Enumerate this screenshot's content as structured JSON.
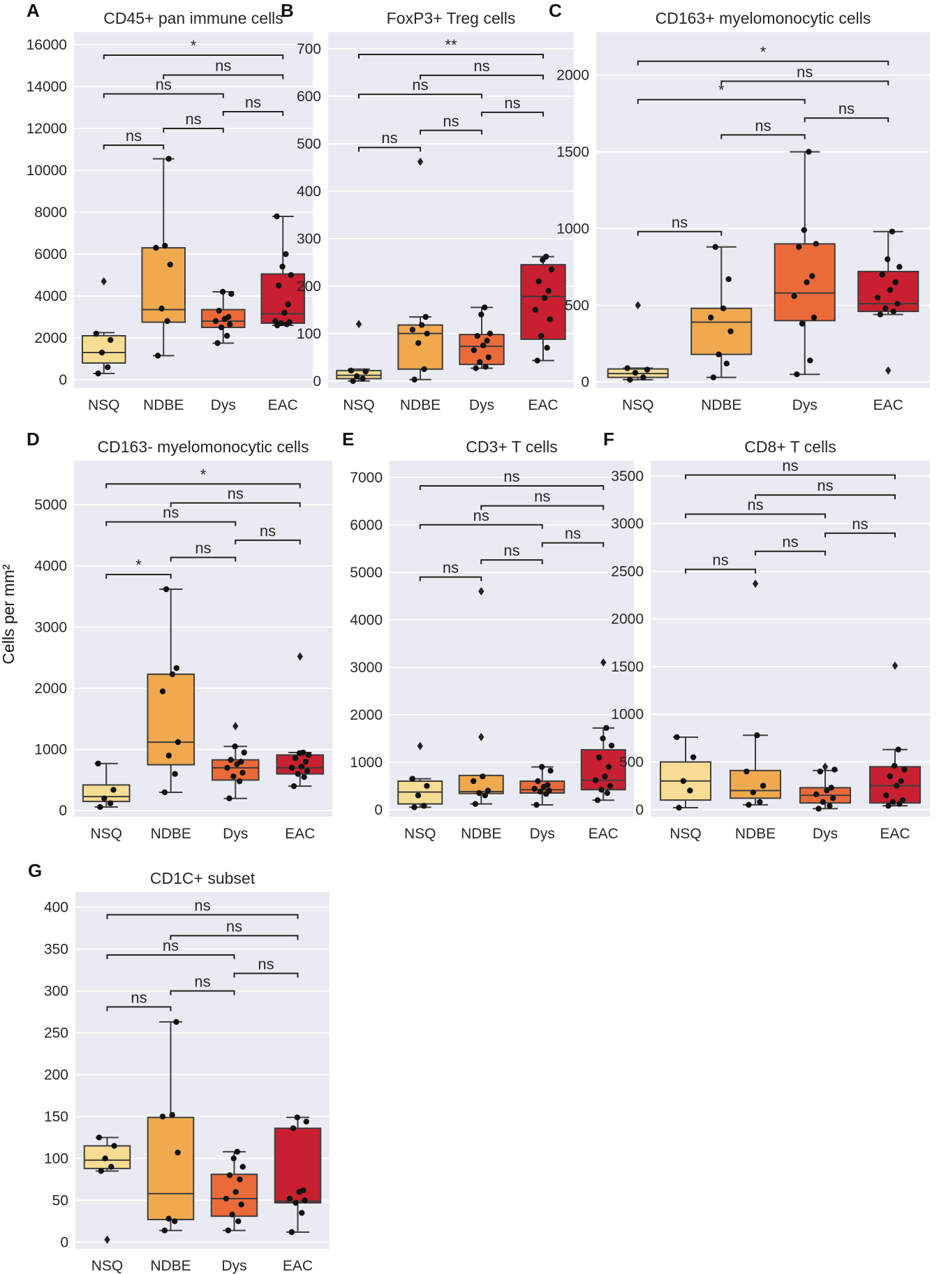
{
  "figure": {
    "shared_ylabel": "Cells per mm²"
  },
  "chart_data": [
    {
      "panel": "A",
      "type": "box",
      "title": "CD45+ pan immune cells",
      "categories": [
        "NSQ",
        "NDBE",
        "Dys",
        "EAC"
      ],
      "colors": [
        "#f7dc93",
        "#f0a94e",
        "#eb6a3a",
        "#c82030"
      ],
      "ylim": [
        -400,
        16600
      ],
      "yticks": [
        0,
        2000,
        4000,
        6000,
        8000,
        10000,
        12000,
        14000,
        16000
      ],
      "ytick_labels": [
        "0",
        "2000",
        "4000",
        "6000",
        "8000",
        "10000",
        "12000",
        "14000",
        "16000"
      ],
      "boxes": [
        {
          "q1": 800,
          "median": 1300,
          "q3": 2100,
          "whislo": 300,
          "whishi": 2250,
          "fliers": [
            4700
          ],
          "points": [
            300,
            600,
            1300,
            1900,
            2200
          ]
        },
        {
          "q1": 2750,
          "median": 3350,
          "q3": 6300,
          "whislo": 1150,
          "whishi": 10550,
          "fliers": [],
          "points": [
            1150,
            2800,
            3400,
            5500,
            6300,
            6400,
            10550
          ]
        },
        {
          "q1": 2500,
          "median": 2800,
          "q3": 3350,
          "whislo": 1750,
          "whishi": 4200,
          "fliers": [],
          "points": [
            1750,
            2100,
            2500,
            2650,
            2800,
            2900,
            3000,
            3300,
            4100,
            4200
          ]
        },
        {
          "q1": 2700,
          "median": 3150,
          "q3": 5050,
          "whislo": 2600,
          "whishi": 7800,
          "fliers": [],
          "points": [
            2600,
            2650,
            2700,
            2750,
            2800,
            3200,
            3600,
            4500,
            5000,
            5400,
            6000,
            7800
          ]
        }
      ],
      "brackets": [
        {
          "from": "NSQ",
          "to": "NDBE",
          "y": 11200,
          "label": "ns"
        },
        {
          "from": "NDBE",
          "to": "Dys",
          "y": 12000,
          "label": "ns"
        },
        {
          "from": "Dys",
          "to": "EAC",
          "y": 12800,
          "label": "ns"
        },
        {
          "from": "NSQ",
          "to": "Dys",
          "y": 13650,
          "label": "ns"
        },
        {
          "from": "NDBE",
          "to": "EAC",
          "y": 14550,
          "label": "ns"
        },
        {
          "from": "NSQ",
          "to": "EAC",
          "y": 15500,
          "label": "*"
        }
      ]
    },
    {
      "panel": "B",
      "type": "box",
      "title": "FoxP3+ Treg cells",
      "categories": [
        "NSQ",
        "NDBE",
        "Dys",
        "EAC"
      ],
      "colors": [
        "#f7dc93",
        "#f0a94e",
        "#eb6a3a",
        "#c82030"
      ],
      "ylim": [
        -15,
        735
      ],
      "yticks": [
        0,
        100,
        200,
        300,
        400,
        500,
        600,
        700
      ],
      "ytick_labels": [
        "0",
        "100",
        "200",
        "300",
        "400",
        "500",
        "600",
        "700"
      ],
      "boxes": [
        {
          "q1": 5,
          "median": 12,
          "q3": 22,
          "whislo": 0,
          "whishi": 25,
          "fliers": [
            120
          ],
          "points": [
            0,
            5,
            10,
            20,
            22
          ]
        },
        {
          "q1": 25,
          "median": 100,
          "q3": 118,
          "whislo": 3,
          "whishi": 135,
          "fliers": [
            462
          ],
          "points": [
            3,
            25,
            80,
            100,
            108,
            118,
            135
          ]
        },
        {
          "q1": 35,
          "median": 73,
          "q3": 98,
          "whislo": 27,
          "whishi": 155,
          "fliers": [],
          "points": [
            27,
            30,
            40,
            50,
            65,
            75,
            85,
            95,
            100,
            140,
            155
          ]
        },
        {
          "q1": 88,
          "median": 178,
          "q3": 245,
          "whislo": 43,
          "whishi": 262,
          "fliers": [],
          "points": [
            43,
            70,
            95,
            130,
            150,
            175,
            190,
            210,
            235,
            255,
            262
          ]
        }
      ],
      "brackets": [
        {
          "from": "NSQ",
          "to": "NDBE",
          "y": 492,
          "label": "ns"
        },
        {
          "from": "NDBE",
          "to": "Dys",
          "y": 528,
          "label": "ns"
        },
        {
          "from": "Dys",
          "to": "EAC",
          "y": 566,
          "label": "ns"
        },
        {
          "from": "NSQ",
          "to": "Dys",
          "y": 604,
          "label": "ns"
        },
        {
          "from": "NDBE",
          "to": "EAC",
          "y": 644,
          "label": "ns"
        },
        {
          "from": "NSQ",
          "to": "EAC",
          "y": 688,
          "label": "**"
        }
      ]
    },
    {
      "panel": "C",
      "type": "box",
      "title": "CD163+ myelomonocytic cells",
      "categories": [
        "NSQ",
        "NDBE",
        "Dys",
        "EAC"
      ],
      "colors": [
        "#f7dc93",
        "#f0a94e",
        "#eb6a3a",
        "#c82030"
      ],
      "ylim": [
        -40,
        2280
      ],
      "yticks": [
        0,
        500,
        1000,
        1500,
        2000
      ],
      "ytick_labels": [
        "0",
        "500",
        "1000",
        "1500",
        "2000"
      ],
      "boxes": [
        {
          "q1": 30,
          "median": 55,
          "q3": 85,
          "whislo": 15,
          "whishi": 90,
          "fliers": [
            500
          ],
          "points": [
            15,
            30,
            60,
            80,
            90
          ]
        },
        {
          "q1": 180,
          "median": 390,
          "q3": 480,
          "whislo": 30,
          "whishi": 880,
          "fliers": [],
          "points": [
            30,
            120,
            180,
            330,
            420,
            480,
            670,
            880
          ]
        },
        {
          "q1": 400,
          "median": 580,
          "q3": 900,
          "whislo": 50,
          "whishi": 1500,
          "fliers": [],
          "points": [
            50,
            140,
            380,
            420,
            560,
            650,
            690,
            880,
            900,
            990,
            1500
          ]
        },
        {
          "q1": 460,
          "median": 510,
          "q3": 720,
          "whislo": 440,
          "whishi": 980,
          "fliers": [
            75
          ],
          "points": [
            440,
            460,
            480,
            510,
            550,
            600,
            650,
            700,
            750,
            800,
            980
          ]
        }
      ],
      "brackets": [
        {
          "from": "NSQ",
          "to": "NDBE",
          "y": 980,
          "label": "ns"
        },
        {
          "from": "NDBE",
          "to": "Dys",
          "y": 1610,
          "label": "ns"
        },
        {
          "from": "Dys",
          "to": "EAC",
          "y": 1720,
          "label": "ns"
        },
        {
          "from": "NSQ",
          "to": "Dys",
          "y": 1840,
          "label": "*"
        },
        {
          "from": "NDBE",
          "to": "EAC",
          "y": 1960,
          "label": "ns"
        },
        {
          "from": "NSQ",
          "to": "EAC",
          "y": 2090,
          "label": "*"
        }
      ]
    },
    {
      "panel": "D",
      "type": "box",
      "title": "CD163- myelomonocytic cells",
      "categories": [
        "NSQ",
        "NDBE",
        "Dys",
        "EAC"
      ],
      "colors": [
        "#f7dc93",
        "#f0a94e",
        "#eb6a3a",
        "#c82030"
      ],
      "ylim": [
        -100,
        5720
      ],
      "yticks": [
        0,
        1000,
        2000,
        3000,
        4000,
        5000
      ],
      "ytick_labels": [
        "0",
        "1000",
        "2000",
        "3000",
        "4000",
        "5000"
      ],
      "boxes": [
        {
          "q1": 150,
          "median": 230,
          "q3": 420,
          "whislo": 60,
          "whishi": 770,
          "fliers": [],
          "points": [
            60,
            120,
            200,
            340,
            770
          ]
        },
        {
          "q1": 750,
          "median": 1120,
          "q3": 2230,
          "whislo": 300,
          "whishi": 3620,
          "fliers": [],
          "points": [
            300,
            600,
            900,
            1120,
            1950,
            2230,
            2330,
            3620
          ]
        },
        {
          "q1": 500,
          "median": 700,
          "q3": 830,
          "whislo": 200,
          "whishi": 1050,
          "fliers": [
            1380
          ],
          "points": [
            200,
            480,
            560,
            620,
            700,
            760,
            800,
            830,
            950,
            1050
          ]
        },
        {
          "q1": 600,
          "median": 700,
          "q3": 910,
          "whislo": 400,
          "whishi": 950,
          "fliers": [
            2520
          ],
          "points": [
            400,
            550,
            600,
            650,
            700,
            720,
            800,
            860,
            910,
            940,
            950
          ]
        }
      ],
      "brackets": [
        {
          "from": "NSQ",
          "to": "NDBE",
          "y": 3860,
          "label": "*"
        },
        {
          "from": "NDBE",
          "to": "Dys",
          "y": 4140,
          "label": "ns"
        },
        {
          "from": "Dys",
          "to": "EAC",
          "y": 4420,
          "label": "ns"
        },
        {
          "from": "NSQ",
          "to": "Dys",
          "y": 4720,
          "label": "ns"
        },
        {
          "from": "NDBE",
          "to": "EAC",
          "y": 5030,
          "label": "ns"
        },
        {
          "from": "NSQ",
          "to": "EAC",
          "y": 5340,
          "label": "*"
        }
      ]
    },
    {
      "panel": "E",
      "type": "box",
      "title": "CD3+ T cells",
      "categories": [
        "NSQ",
        "NDBE",
        "Dys",
        "EAC"
      ],
      "colors": [
        "#f7dc93",
        "#f0a94e",
        "#eb6a3a",
        "#c82030"
      ],
      "ylim": [
        -150,
        7350
      ],
      "yticks": [
        0,
        1000,
        2000,
        3000,
        4000,
        5000,
        6000,
        7000
      ],
      "ytick_labels": [
        "0",
        "1000",
        "2000",
        "3000",
        "4000",
        "5000",
        "6000",
        "7000"
      ],
      "boxes": [
        {
          "q1": 120,
          "median": 370,
          "q3": 600,
          "whislo": 50,
          "whishi": 650,
          "fliers": [
            1340
          ],
          "points": [
            50,
            80,
            300,
            500,
            650
          ]
        },
        {
          "q1": 340,
          "median": 380,
          "q3": 720,
          "whislo": 120,
          "whishi": 720,
          "fliers": [
            1530,
            4600
          ],
          "points": [
            120,
            300,
            350,
            400,
            600,
            700
          ]
        },
        {
          "q1": 350,
          "median": 420,
          "q3": 600,
          "whislo": 100,
          "whishi": 900,
          "fliers": [],
          "points": [
            100,
            330,
            380,
            400,
            440,
            480,
            520,
            600,
            820,
            900
          ]
        },
        {
          "q1": 420,
          "median": 620,
          "q3": 1260,
          "whislo": 200,
          "whishi": 1720,
          "fliers": [
            3100
          ],
          "points": [
            200,
            350,
            420,
            500,
            620,
            700,
            900,
            1100,
            1350,
            1500,
            1720
          ]
        }
      ],
      "brackets": [
        {
          "from": "NSQ",
          "to": "NDBE",
          "y": 4900,
          "label": "ns"
        },
        {
          "from": "NDBE",
          "to": "Dys",
          "y": 5260,
          "label": "ns"
        },
        {
          "from": "Dys",
          "to": "EAC",
          "y": 5620,
          "label": "ns"
        },
        {
          "from": "NSQ",
          "to": "Dys",
          "y": 6000,
          "label": "ns"
        },
        {
          "from": "NDBE",
          "to": "EAC",
          "y": 6400,
          "label": "ns"
        },
        {
          "from": "NSQ",
          "to": "EAC",
          "y": 6820,
          "label": "ns"
        }
      ]
    },
    {
      "panel": "F",
      "type": "box",
      "title": "CD8+ T cells",
      "categories": [
        "NSQ",
        "NDBE",
        "Dys",
        "EAC"
      ],
      "colors": [
        "#f7dc93",
        "#f0a94e",
        "#eb6a3a",
        "#c82030"
      ],
      "ylim": [
        -75,
        3660
      ],
      "yticks": [
        0,
        500,
        1000,
        1500,
        2000,
        2500,
        3000,
        3500
      ],
      "ytick_labels": [
        "0",
        "500",
        "1000",
        "1500",
        "2000",
        "2500",
        "3000",
        "3500"
      ],
      "boxes": [
        {
          "q1": 100,
          "median": 300,
          "q3": 500,
          "whislo": 20,
          "whishi": 760,
          "fliers": [],
          "points": [
            20,
            200,
            300,
            550,
            760
          ]
        },
        {
          "q1": 120,
          "median": 200,
          "q3": 410,
          "whislo": 50,
          "whishi": 780,
          "fliers": [
            2370
          ],
          "points": [
            50,
            80,
            180,
            250,
            400,
            780
          ]
        },
        {
          "q1": 70,
          "median": 150,
          "q3": 230,
          "whislo": 10,
          "whishi": 410,
          "fliers": [
            450
          ],
          "points": [
            10,
            40,
            80,
            120,
            160,
            200,
            230,
            400,
            420
          ]
        },
        {
          "q1": 70,
          "median": 250,
          "q3": 450,
          "whislo": 40,
          "whishi": 630,
          "fliers": [
            1510
          ],
          "points": [
            40,
            60,
            80,
            100,
            150,
            250,
            300,
            350,
            420,
            460,
            630
          ]
        }
      ],
      "brackets": [
        {
          "from": "NSQ",
          "to": "NDBE",
          "y": 2520,
          "label": "ns"
        },
        {
          "from": "NDBE",
          "to": "Dys",
          "y": 2710,
          "label": "ns"
        },
        {
          "from": "Dys",
          "to": "EAC",
          "y": 2900,
          "label": "ns"
        },
        {
          "from": "NSQ",
          "to": "Dys",
          "y": 3100,
          "label": "ns"
        },
        {
          "from": "NDBE",
          "to": "EAC",
          "y": 3300,
          "label": "ns"
        },
        {
          "from": "NSQ",
          "to": "EAC",
          "y": 3510,
          "label": "ns"
        }
      ]
    },
    {
      "panel": "G",
      "type": "box",
      "title": "CD1C+ subset",
      "categories": [
        "NSQ",
        "NDBE",
        "Dys",
        "EAC"
      ],
      "colors": [
        "#f7dc93",
        "#f0a94e",
        "#eb6a3a",
        "#c82030"
      ],
      "ylim": [
        -8,
        418
      ],
      "yticks": [
        0,
        50,
        100,
        150,
        200,
        250,
        300,
        350,
        400
      ],
      "ytick_labels": [
        "0",
        "50",
        "100",
        "150",
        "200",
        "250",
        "300",
        "350",
        "400"
      ],
      "boxes": [
        {
          "q1": 88,
          "median": 98,
          "q3": 115,
          "whislo": 85,
          "whishi": 125,
          "fliers": [
            3
          ],
          "points": [
            85,
            90,
            100,
            115,
            125
          ]
        },
        {
          "q1": 27,
          "median": 58,
          "q3": 149,
          "whislo": 14,
          "whishi": 263,
          "fliers": [],
          "points": [
            14,
            25,
            28,
            107,
            150,
            152,
            263
          ]
        },
        {
          "q1": 31,
          "median": 52,
          "q3": 81,
          "whislo": 14,
          "whishi": 108,
          "fliers": [],
          "points": [
            14,
            25,
            33,
            45,
            52,
            60,
            75,
            80,
            90,
            100,
            108
          ]
        },
        {
          "q1": 47,
          "median": 49,
          "q3": 136,
          "whislo": 12,
          "whishi": 149,
          "fliers": [],
          "points": [
            12,
            35,
            47,
            50,
            52,
            60,
            62,
            136,
            144,
            149
          ]
        }
      ],
      "brackets": [
        {
          "from": "NSQ",
          "to": "NDBE",
          "y": 281,
          "label": "ns"
        },
        {
          "from": "NDBE",
          "to": "Dys",
          "y": 300,
          "label": "ns"
        },
        {
          "from": "Dys",
          "to": "EAC",
          "y": 321,
          "label": "ns"
        },
        {
          "from": "NSQ",
          "to": "Dys",
          "y": 343,
          "label": "ns"
        },
        {
          "from": "NDBE",
          "to": "EAC",
          "y": 366,
          "label": "ns"
        },
        {
          "from": "NSQ",
          "to": "EAC",
          "y": 391,
          "label": "ns"
        }
      ]
    }
  ]
}
